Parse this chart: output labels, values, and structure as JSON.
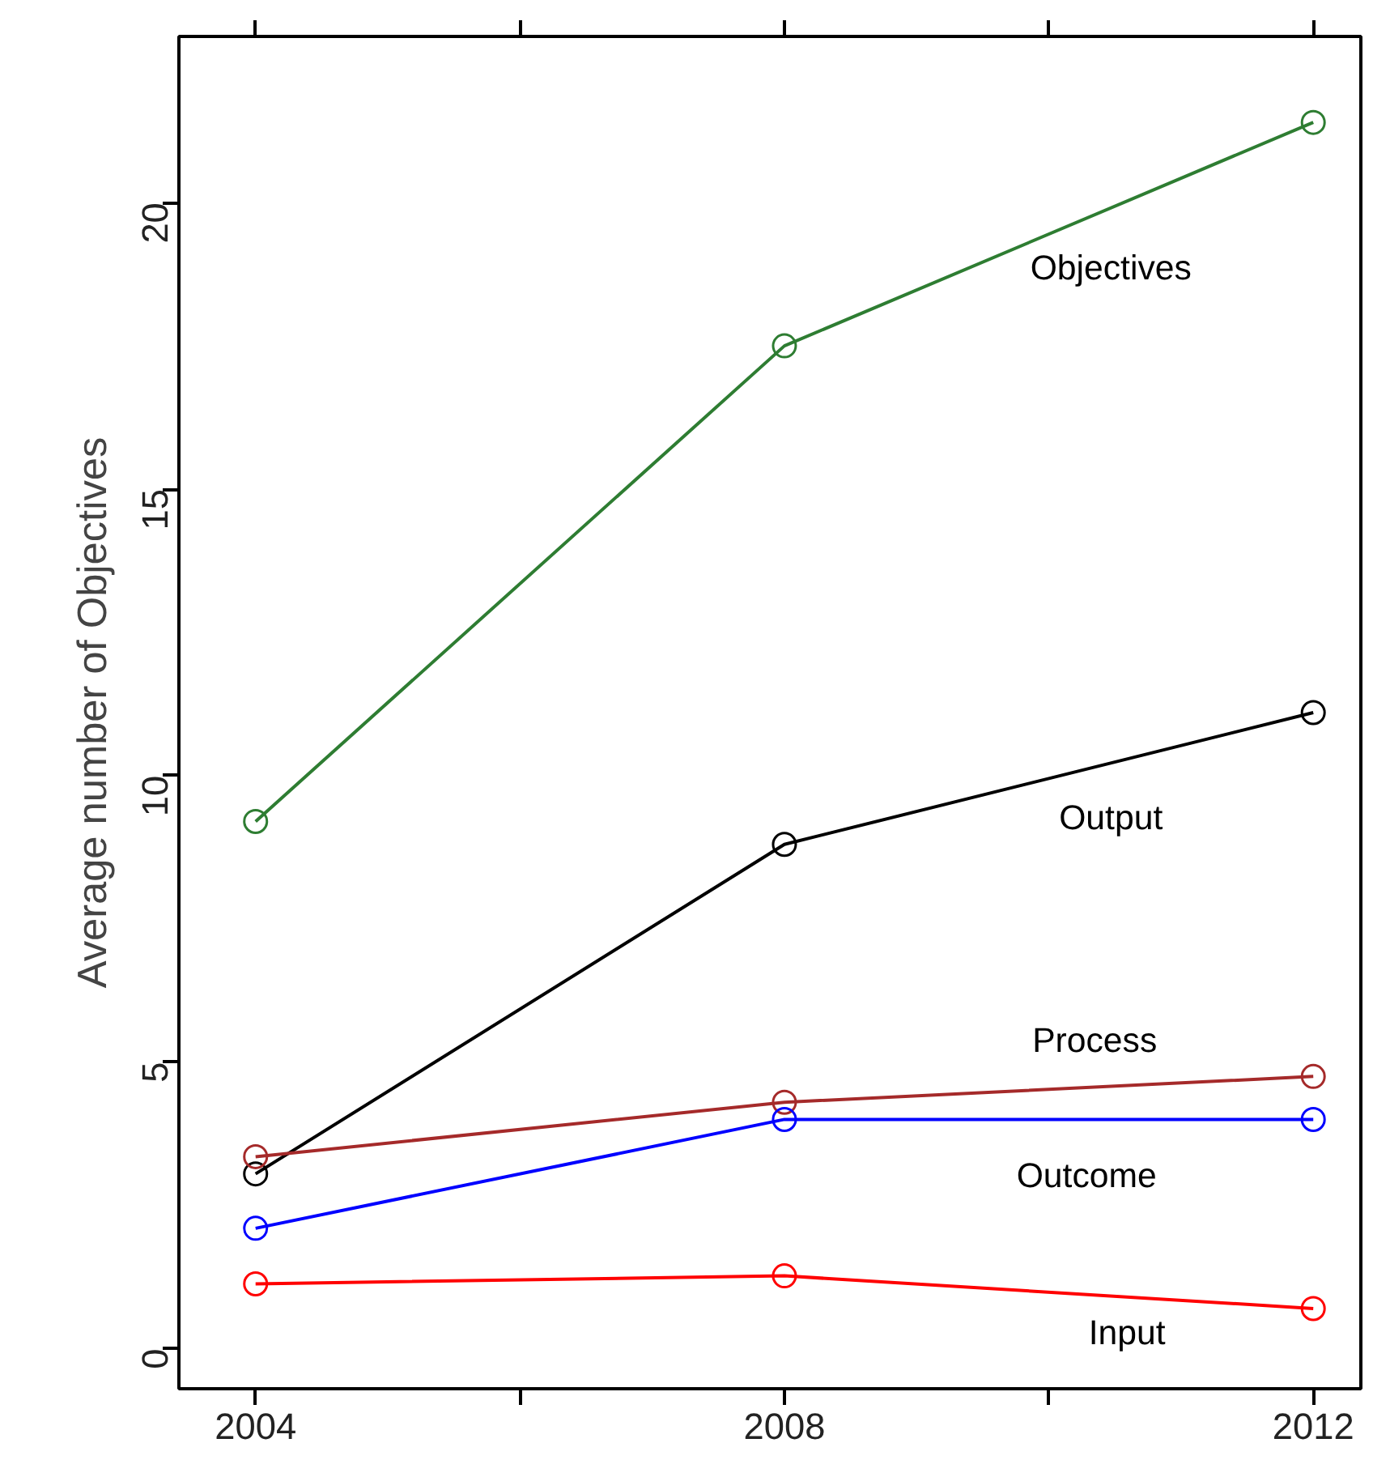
{
  "chart_data": {
    "type": "line",
    "ylabel": "Average number of Objectives",
    "x": [
      2004,
      2008,
      2012
    ],
    "xlim": [
      2003.42,
      2012.36
    ],
    "ylim": [
      -0.7,
      22.9
    ],
    "xticks": [
      2004,
      {
        "value": 2006,
        "label": null
      },
      2008,
      {
        "value": 2010,
        "label": null
      },
      2012
    ],
    "yticks": [
      0,
      5,
      10,
      15,
      20
    ],
    "marker": "circle",
    "grid": false,
    "series": [
      {
        "name": "Objectives",
        "color": "#2e7d32",
        "values": [
          9.2,
          17.5,
          21.4
        ]
      },
      {
        "name": "Output",
        "color": "#000000",
        "values": [
          3.05,
          8.8,
          11.1
        ]
      },
      {
        "name": "Process",
        "color": "#a52a2a",
        "values": [
          3.35,
          4.3,
          4.75
        ]
      },
      {
        "name": "Outcome",
        "color": "#0000ff",
        "values": [
          2.1,
          4.0,
          4.0
        ]
      },
      {
        "name": "Input",
        "color": "#ff0000",
        "values": [
          1.13,
          1.27,
          0.7
        ]
      }
    ]
  }
}
